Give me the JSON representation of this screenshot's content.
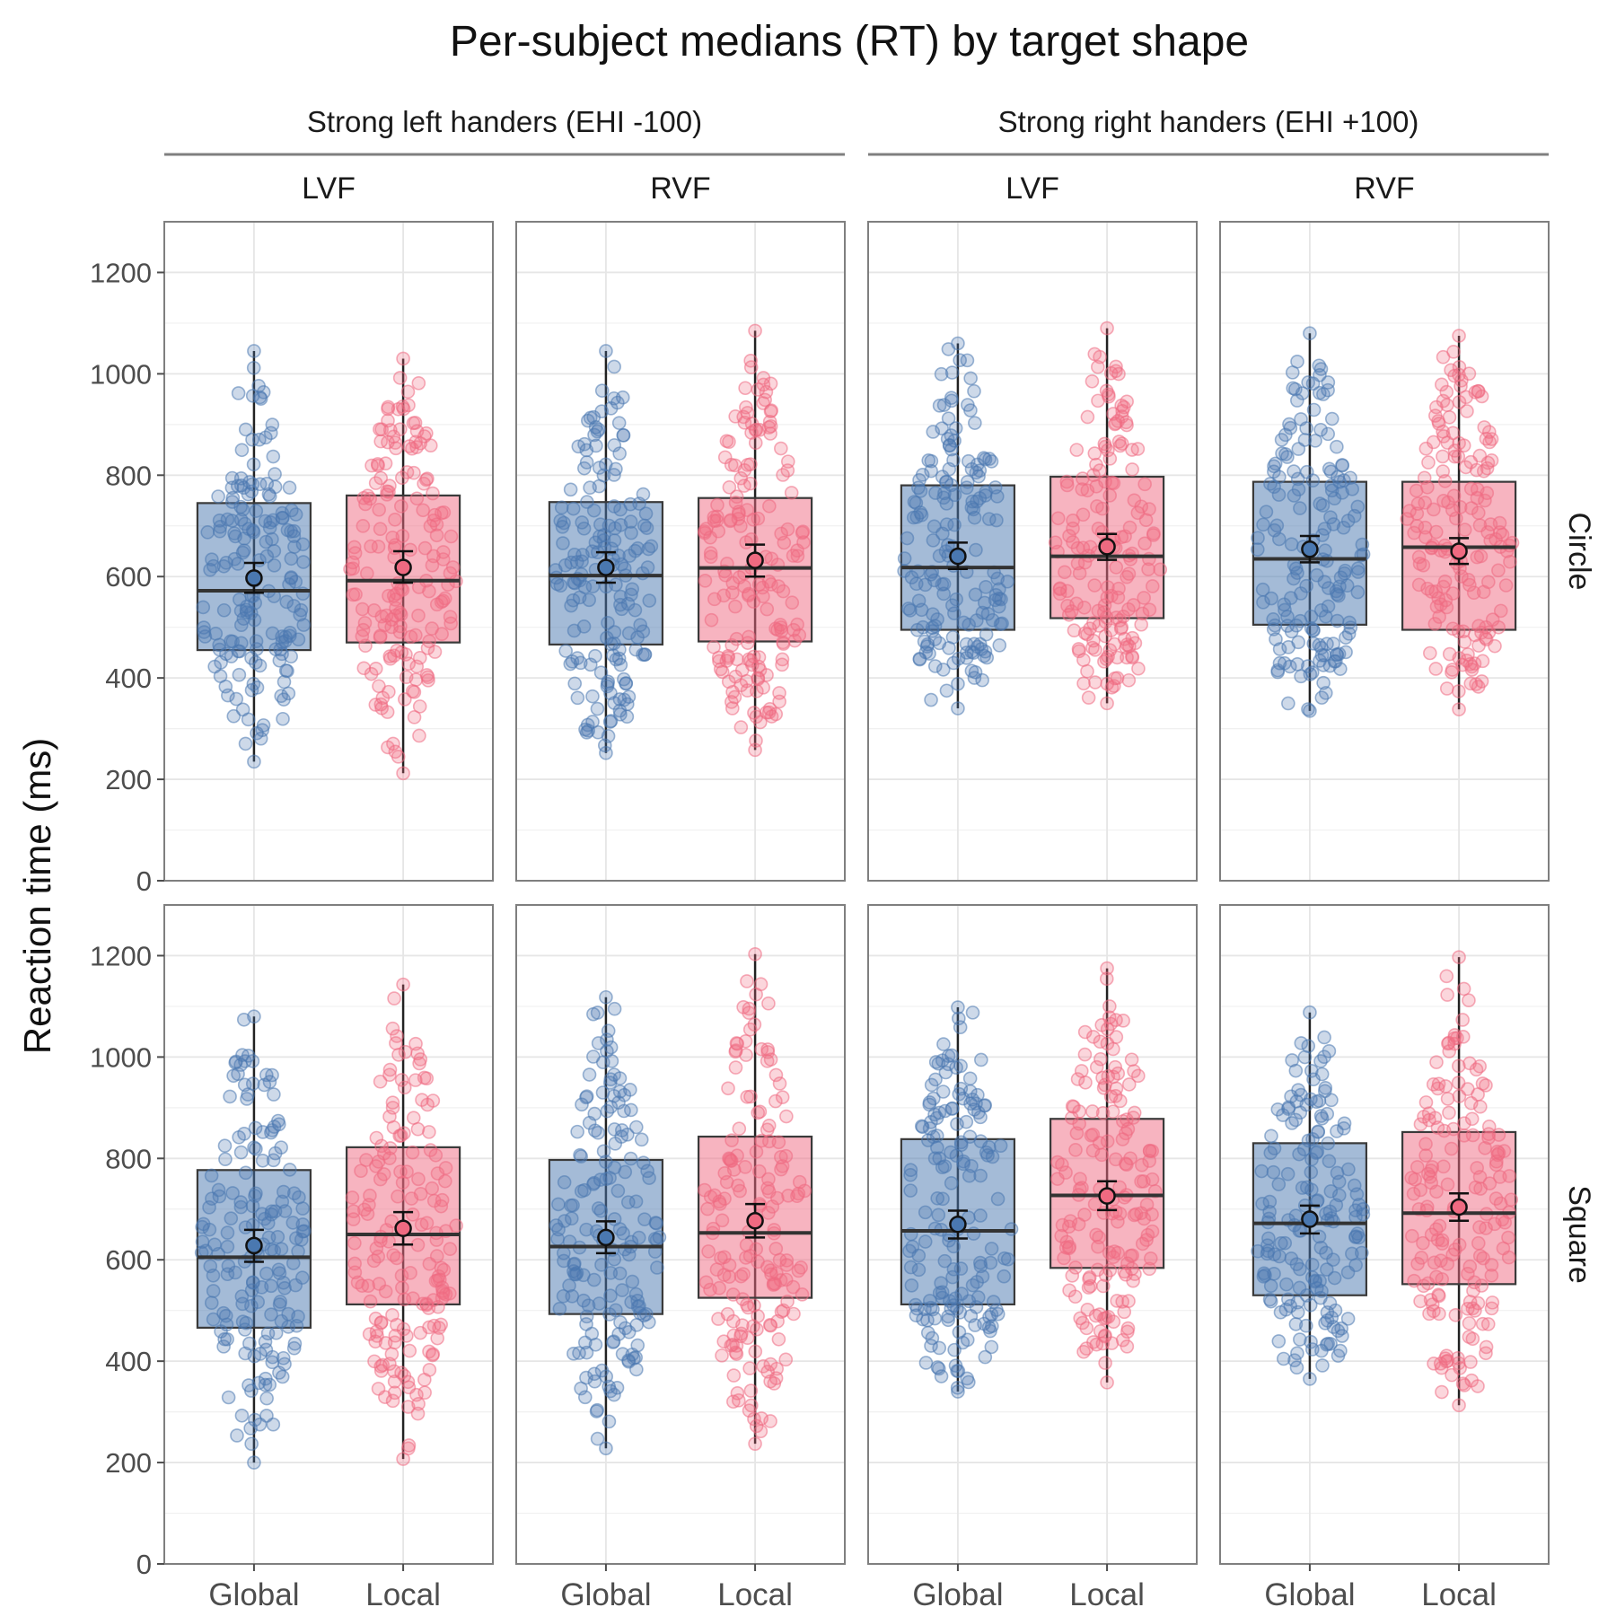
{
  "chart_data": {
    "type": "box",
    "title": "Per-subject medians (RT) by target shape",
    "ylabel": "Reaction time (ms)",
    "xlabel": "",
    "ylim": [
      0,
      1300
    ],
    "y_ticks": [
      0,
      200,
      400,
      600,
      800,
      1000,
      1200
    ],
    "grid": true,
    "categories": [
      "Global",
      "Local"
    ],
    "colors": {
      "Global": "#4a78b0",
      "Local": "#ef6a81"
    },
    "column_groups": [
      {
        "label": "Strong left handers (EHI -100)",
        "columns": [
          "LVF",
          "RVF"
        ]
      },
      {
        "label": "Strong right handers (EHI +100)",
        "columns": [
          "LVF",
          "RVF"
        ]
      }
    ],
    "rows": [
      "Circle",
      "Square"
    ],
    "panels": [
      {
        "row": "Circle",
        "group": "Strong left handers (EHI -100)",
        "column": "LVF",
        "boxes": [
          {
            "category": "Global",
            "min": 235,
            "q1": 455,
            "median": 572,
            "q3": 745,
            "max": 1045,
            "mean": 597,
            "ci": [
              568,
              627
            ]
          },
          {
            "category": "Local",
            "min": 212,
            "q1": 470,
            "median": 592,
            "q3": 760,
            "max": 1030,
            "mean": 618,
            "ci": [
              588,
              650
            ]
          }
        ]
      },
      {
        "row": "Circle",
        "group": "Strong left handers (EHI -100)",
        "column": "RVF",
        "boxes": [
          {
            "category": "Global",
            "min": 252,
            "q1": 466,
            "median": 602,
            "q3": 747,
            "max": 1045,
            "mean": 618,
            "ci": [
              588,
              648
            ]
          },
          {
            "category": "Local",
            "min": 258,
            "q1": 472,
            "median": 617,
            "q3": 755,
            "max": 1085,
            "mean": 632,
            "ci": [
              600,
              663
            ]
          }
        ]
      },
      {
        "row": "Circle",
        "group": "Strong right handers (EHI +100)",
        "column": "LVF",
        "boxes": [
          {
            "category": "Global",
            "min": 340,
            "q1": 495,
            "median": 618,
            "q3": 780,
            "max": 1060,
            "mean": 640,
            "ci": [
              615,
              667
            ]
          },
          {
            "category": "Local",
            "min": 350,
            "q1": 518,
            "median": 640,
            "q3": 797,
            "max": 1090,
            "mean": 659,
            "ci": [
              633,
              684
            ]
          }
        ]
      },
      {
        "row": "Circle",
        "group": "Strong right handers (EHI +100)",
        "column": "RVF",
        "boxes": [
          {
            "category": "Global",
            "min": 335,
            "q1": 505,
            "median": 635,
            "q3": 787,
            "max": 1080,
            "mean": 654,
            "ci": [
              628,
              680
            ]
          },
          {
            "category": "Local",
            "min": 338,
            "q1": 495,
            "median": 658,
            "q3": 787,
            "max": 1075,
            "mean": 650,
            "ci": [
              625,
              676
            ]
          }
        ]
      },
      {
        "row": "Square",
        "group": "Strong left handers (EHI -100)",
        "column": "LVF",
        "boxes": [
          {
            "category": "Global",
            "min": 200,
            "q1": 466,
            "median": 605,
            "q3": 777,
            "max": 1080,
            "mean": 628,
            "ci": [
              596,
              659
            ]
          },
          {
            "category": "Local",
            "min": 207,
            "q1": 512,
            "median": 650,
            "q3": 822,
            "max": 1143,
            "mean": 662,
            "ci": [
              630,
              694
            ]
          }
        ]
      },
      {
        "row": "Square",
        "group": "Strong left handers (EHI -100)",
        "column": "RVF",
        "boxes": [
          {
            "category": "Global",
            "min": 228,
            "q1": 493,
            "median": 626,
            "q3": 797,
            "max": 1118,
            "mean": 644,
            "ci": [
              613,
              676
            ]
          },
          {
            "category": "Local",
            "min": 237,
            "q1": 525,
            "median": 653,
            "q3": 843,
            "max": 1203,
            "mean": 677,
            "ci": [
              644,
              710
            ]
          }
        ]
      },
      {
        "row": "Square",
        "group": "Strong right handers (EHI +100)",
        "column": "LVF",
        "boxes": [
          {
            "category": "Global",
            "min": 340,
            "q1": 512,
            "median": 657,
            "q3": 838,
            "max": 1098,
            "mean": 670,
            "ci": [
              642,
              697
            ]
          },
          {
            "category": "Local",
            "min": 358,
            "q1": 584,
            "median": 727,
            "q3": 878,
            "max": 1175,
            "mean": 726,
            "ci": [
              698,
              755
            ]
          }
        ]
      },
      {
        "row": "Square",
        "group": "Strong right handers (EHI +100)",
        "column": "RVF",
        "boxes": [
          {
            "category": "Global",
            "min": 365,
            "q1": 530,
            "median": 672,
            "q3": 830,
            "max": 1088,
            "mean": 680,
            "ci": [
              652,
              707
            ]
          },
          {
            "category": "Local",
            "min": 313,
            "q1": 552,
            "median": 692,
            "q3": 852,
            "max": 1197,
            "mean": 704,
            "ci": [
              677,
              731
            ]
          }
        ]
      }
    ]
  }
}
